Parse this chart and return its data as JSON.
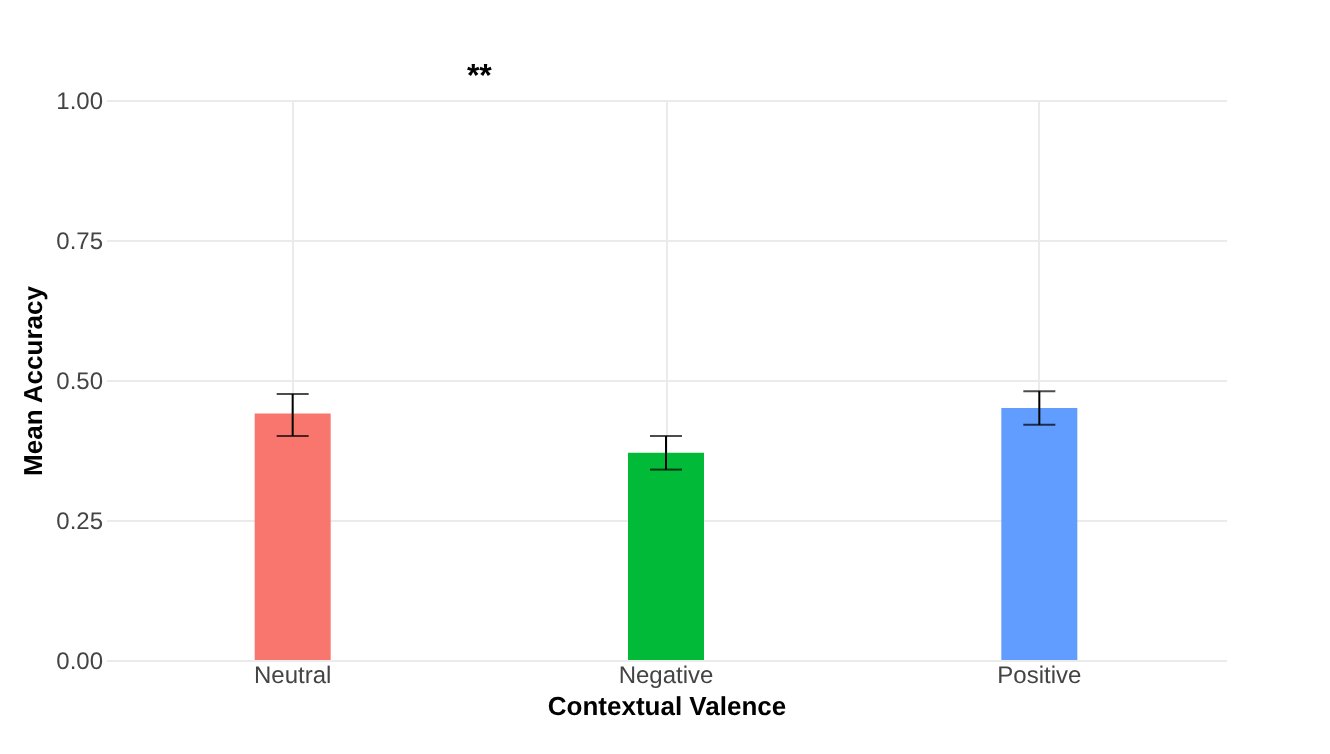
{
  "chart_data": {
    "type": "bar",
    "xlabel": "Contextual Valence",
    "ylabel": "Mean Accuracy",
    "categories": [
      "Neutral",
      "Negative",
      "Positive"
    ],
    "values": [
      0.44,
      0.37,
      0.45
    ],
    "colors": [
      "#f8766d",
      "#00ba38",
      "#619cff"
    ],
    "errors": [
      [
        0.4,
        0.475
      ],
      [
        0.34,
        0.4
      ],
      [
        0.42,
        0.48
      ]
    ],
    "ylim": [
      0,
      1.0
    ],
    "yticks": [
      {
        "value": 0,
        "label": "0.00"
      },
      {
        "value": 0.25,
        "label": "0.25"
      },
      {
        "value": 0.5,
        "label": "0.50"
      },
      {
        "value": 0.75,
        "label": "0.75"
      },
      {
        "value": 1.0,
        "label": "1.00"
      }
    ],
    "grid": true,
    "annotations": [
      "**"
    ]
  }
}
